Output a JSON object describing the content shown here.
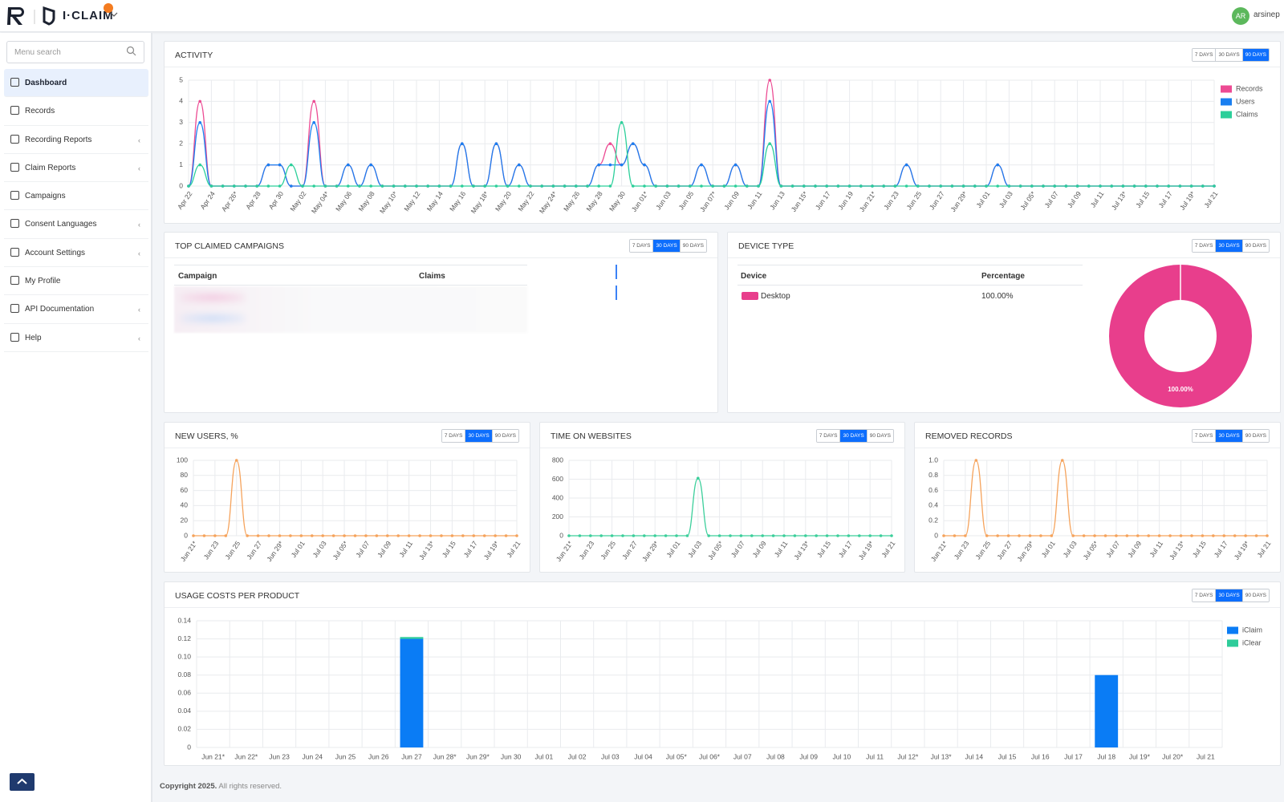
{
  "header": {
    "brand": "I·CLAIM",
    "user_initials": "AR",
    "user_name": "arsinep"
  },
  "sidebar": {
    "search_placeholder": "Menu search",
    "items": [
      {
        "label": "Dashboard",
        "active": true,
        "submenu": false
      },
      {
        "label": "Records",
        "active": false,
        "submenu": false
      },
      {
        "label": "Recording Reports",
        "active": false,
        "submenu": true
      },
      {
        "label": "Claim Reports",
        "active": false,
        "submenu": true
      },
      {
        "label": "Campaigns",
        "active": false,
        "submenu": false
      },
      {
        "label": "Consent Languages",
        "active": false,
        "submenu": true
      },
      {
        "label": "Account Settings",
        "active": false,
        "submenu": true
      },
      {
        "label": "My Profile",
        "active": false,
        "submenu": false
      },
      {
        "label": "API Documentation",
        "active": false,
        "submenu": true
      },
      {
        "label": "Help",
        "active": false,
        "submenu": true
      }
    ]
  },
  "range_options": [
    "7 DAYS",
    "30 DAYS",
    "90 DAYS"
  ],
  "top_campaigns": {
    "title": "TOP CLAIMED CAMPAIGNS",
    "selected_range": "30 DAYS",
    "columns": [
      "Campaign",
      "Claims"
    ]
  },
  "footer": {
    "copyright": "Copyright 2025.",
    "rights": "All rights reserved."
  },
  "chart_data": [
    {
      "type": "line",
      "title": "ACTIVITY",
      "selected_range": "90 DAYS",
      "legend": "right",
      "grid": true,
      "categories": [
        "Apr 22",
        null,
        "Apr 24",
        null,
        "Apr 26*",
        null,
        "Apr 28",
        null,
        "Apr 30",
        null,
        "May 02",
        null,
        "May 04*",
        null,
        "May 06",
        null,
        "May 08",
        null,
        "May 10*",
        null,
        "May 12",
        null,
        "May 14",
        null,
        "May 16",
        null,
        "May 18*",
        null,
        "May 20",
        null,
        "May 22",
        null,
        "May 24*",
        null,
        "May 26",
        null,
        "May 28",
        null,
        "May 30",
        null,
        "Jun 01*",
        null,
        "Jun 03",
        null,
        "Jun 05",
        null,
        "Jun 07*",
        null,
        "Jun 09",
        null,
        "Jun 11",
        null,
        "Jun 13",
        null,
        "Jun 15*",
        null,
        "Jun 17",
        null,
        "Jun 19",
        null,
        "Jun 21*",
        null,
        "Jun 23",
        null,
        "Jun 25",
        null,
        "Jun 27",
        null,
        "Jun 29*",
        null,
        "Jul 01",
        null,
        "Jul 03",
        null,
        "Jul 05*",
        null,
        "Jul 07",
        null,
        "Jul 09",
        null,
        "Jul 11",
        null,
        "Jul 13*",
        null,
        "Jul 15",
        null,
        "Jul 17",
        null,
        "Jul 19*",
        null,
        "Jul 21"
      ],
      "series": [
        {
          "name": "Records",
          "color": "#ec4b93",
          "values": [
            0,
            4,
            0,
            0,
            0,
            0,
            0,
            1,
            1,
            0,
            0,
            4,
            0,
            0,
            1,
            0,
            1,
            0,
            0,
            0,
            0,
            0,
            0,
            0,
            2,
            0,
            0,
            2,
            0,
            1,
            0,
            0,
            0,
            0,
            0,
            0,
            1,
            2,
            1,
            2,
            1,
            0,
            0,
            0,
            0,
            1,
            0,
            0,
            1,
            0,
            0,
            5,
            0,
            0,
            0,
            0,
            0,
            0,
            0,
            0,
            0,
            0,
            0,
            1,
            0,
            0,
            0,
            0,
            0,
            0,
            0,
            1,
            0,
            0,
            0,
            0,
            0,
            0,
            0,
            0,
            0,
            0,
            0,
            0,
            0,
            0,
            0,
            0,
            0,
            0,
            0
          ]
        },
        {
          "name": "Users",
          "color": "#1a7ff0",
          "values": [
            0,
            3,
            0,
            0,
            0,
            0,
            0,
            1,
            1,
            0,
            0,
            3,
            0,
            0,
            1,
            0,
            1,
            0,
            0,
            0,
            0,
            0,
            0,
            0,
            2,
            0,
            0,
            2,
            0,
            1,
            0,
            0,
            0,
            0,
            0,
            0,
            1,
            1,
            1,
            2,
            1,
            0,
            0,
            0,
            0,
            1,
            0,
            0,
            1,
            0,
            0,
            4,
            0,
            0,
            0,
            0,
            0,
            0,
            0,
            0,
            0,
            0,
            0,
            1,
            0,
            0,
            0,
            0,
            0,
            0,
            0,
            1,
            0,
            0,
            0,
            0,
            0,
            0,
            0,
            0,
            0,
            0,
            0,
            0,
            0,
            0,
            0,
            0,
            0,
            0,
            0
          ]
        },
        {
          "name": "Claims",
          "color": "#2ccf9a",
          "values": [
            0,
            1,
            0,
            0,
            0,
            0,
            0,
            0,
            0,
            1,
            0,
            0,
            0,
            0,
            0,
            0,
            0,
            0,
            0,
            0,
            0,
            0,
            0,
            0,
            0,
            0,
            0,
            0,
            0,
            0,
            0,
            0,
            0,
            0,
            0,
            0,
            0,
            0,
            3,
            0,
            0,
            0,
            0,
            0,
            0,
            0,
            0,
            0,
            0,
            0,
            0,
            2,
            0,
            0,
            0,
            0,
            0,
            0,
            0,
            0,
            0,
            0,
            0,
            0,
            0,
            0,
            0,
            0,
            0,
            0,
            0,
            0,
            0,
            0,
            0,
            0,
            0,
            0,
            0,
            0,
            0,
            0,
            0,
            0,
            0,
            0,
            0,
            0,
            0,
            0,
            0
          ]
        }
      ],
      "ylim": [
        0,
        5
      ],
      "yticks": [
        0,
        1,
        2,
        3,
        4,
        5
      ]
    },
    {
      "type": "pie",
      "title": "DEVICE TYPE",
      "selected_range": "30 DAYS",
      "columns": [
        "Device",
        "Percentage"
      ],
      "categories": [
        "Desktop"
      ],
      "values": [
        100
      ],
      "value_labels": [
        "100.00%"
      ],
      "colors": [
        "#e83e8c"
      ]
    },
    {
      "type": "line",
      "title": "NEW USERS, %",
      "selected_range": "30 DAYS",
      "grid": true,
      "categories": [
        "Jun 21*",
        null,
        "Jun 23",
        null,
        "Jun 25",
        null,
        "Jun 27",
        null,
        "Jun 29*",
        null,
        "Jul 01",
        null,
        "Jul 03",
        null,
        "Jul 05*",
        null,
        "Jul 07",
        null,
        "Jul 09",
        null,
        "Jul 11",
        null,
        "Jul 13*",
        null,
        "Jul 15",
        null,
        "Jul 17",
        null,
        "Jul 19*",
        null,
        "Jul 21"
      ],
      "series": [
        {
          "color": "#f5a35c",
          "values": [
            0,
            0,
            0,
            0,
            100,
            0,
            0,
            0,
            0,
            0,
            0,
            0,
            0,
            0,
            0,
            0,
            0,
            0,
            0,
            0,
            0,
            0,
            0,
            0,
            0,
            0,
            0,
            0,
            0,
            0,
            0
          ]
        }
      ],
      "ylim": [
        0,
        100
      ],
      "yticks": [
        0,
        20,
        40,
        60,
        80,
        100
      ]
    },
    {
      "type": "line",
      "title": "TIME ON WEBSITES",
      "selected_range": "30 DAYS",
      "grid": true,
      "categories": [
        "Jun 21*",
        null,
        "Jun 23",
        null,
        "Jun 25",
        null,
        "Jun 27",
        null,
        "Jun 29*",
        null,
        "Jul 01",
        null,
        "Jul 03",
        null,
        "Jul 05*",
        null,
        "Jul 07",
        null,
        "Jul 09",
        null,
        "Jul 11",
        null,
        "Jul 13*",
        null,
        "Jul 15",
        null,
        "Jul 17",
        null,
        "Jul 19*",
        null,
        "Jul 21"
      ],
      "series": [
        {
          "color": "#3ccf9b",
          "values": [
            0,
            0,
            0,
            0,
            0,
            0,
            0,
            0,
            0,
            0,
            0,
            0,
            610,
            0,
            0,
            0,
            0,
            0,
            0,
            0,
            0,
            0,
            0,
            0,
            0,
            0,
            0,
            0,
            0,
            0,
            0
          ]
        }
      ],
      "ylim": [
        0,
        800
      ],
      "yticks": [
        0,
        200,
        400,
        600,
        800
      ]
    },
    {
      "type": "line",
      "title": "REMOVED RECORDS",
      "selected_range": "30 DAYS",
      "grid": true,
      "categories": [
        "Jun 21*",
        null,
        "Jun 23",
        null,
        "Jun 25",
        null,
        "Jun 27",
        null,
        "Jun 29*",
        null,
        "Jul 01",
        null,
        "Jul 03",
        null,
        "Jul 05*",
        null,
        "Jul 07",
        null,
        "Jul 09",
        null,
        "Jul 11",
        null,
        "Jul 13*",
        null,
        "Jul 15",
        null,
        "Jul 17",
        null,
        "Jul 19*",
        null,
        "Jul 21"
      ],
      "series": [
        {
          "color": "#f5a35c",
          "values": [
            0,
            0,
            0,
            1,
            0,
            0,
            0,
            0,
            0,
            0,
            0,
            1,
            0,
            0,
            0,
            0,
            0,
            0,
            0,
            0,
            0,
            0,
            0,
            0,
            0,
            0,
            0,
            0,
            0,
            0,
            0
          ]
        }
      ],
      "ylim": [
        0,
        1
      ],
      "yticks": [
        0,
        0.2,
        0.4,
        0.6,
        0.8,
        {
          "value": 1,
          "label": "1.0"
        }
      ]
    },
    {
      "type": "bar",
      "stacked": true,
      "title": "USAGE COSTS PER PRODUCT",
      "selected_range": "30 DAYS",
      "legend": "right",
      "grid": true,
      "categories": [
        "Jun 21*",
        "Jun 22*",
        "Jun 23",
        "Jun 24",
        "Jun 25",
        "Jun 26",
        "Jun 27",
        "Jun 28*",
        "Jun 29*",
        "Jun 30",
        "Jul 01",
        "Jul 02",
        "Jul 03",
        "Jul 04",
        "Jul 05*",
        "Jul 06*",
        "Jul 07",
        "Jul 08",
        "Jul 09",
        "Jul 10",
        "Jul 11",
        "Jul 12*",
        "Jul 13*",
        "Jul 14",
        "Jul 15",
        "Jul 16",
        "Jul 17",
        "Jul 18",
        "Jul 19*",
        "Jul 20*",
        "Jul 21"
      ],
      "series": [
        {
          "name": "iClaim",
          "color": "#0a7cf5",
          "values": [
            0,
            0,
            0,
            0,
            0,
            0,
            0.12,
            0,
            0,
            0,
            0,
            0,
            0,
            0,
            0,
            0,
            0,
            0,
            0,
            0,
            0,
            0,
            0,
            0,
            0,
            0,
            0,
            0.08,
            0,
            0,
            0
          ]
        },
        {
          "name": "iClear",
          "color": "#2ecc9a",
          "values": [
            0,
            0,
            0,
            0,
            0,
            0,
            0.002,
            0,
            0,
            0,
            0,
            0,
            0,
            0,
            0,
            0,
            0,
            0,
            0,
            0,
            0,
            0,
            0,
            0,
            0,
            0,
            0,
            0,
            0,
            0,
            0
          ]
        }
      ],
      "ylim": [
        0,
        0.14
      ],
      "yticks": [
        0,
        0.02,
        0.04,
        0.06,
        0.08,
        {
          "value": 0.1,
          "label": "0.10"
        },
        0.12,
        0.14
      ]
    }
  ]
}
